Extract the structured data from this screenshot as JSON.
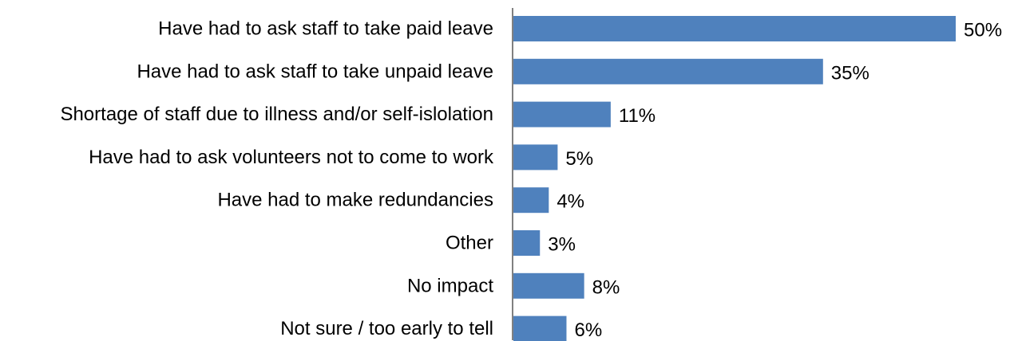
{
  "chart_data": {
    "type": "bar",
    "orientation": "horizontal",
    "categories": [
      "Have had to ask staff to take paid leave",
      "Have had to ask staff to take unpaid leave",
      "Shortage of staff due to illness and/or self-islolation",
      "Have had to ask volunteers not to come to work",
      "Have had to make redundancies",
      "Other",
      "No impact",
      "Not sure / too early to tell"
    ],
    "values": [
      50,
      35,
      11,
      5,
      4,
      3,
      8,
      6
    ],
    "value_labels": [
      "50%",
      "35%",
      "11%",
      "5%",
      "4%",
      "3%",
      "8%",
      "6%"
    ],
    "xlim": [
      0,
      50
    ],
    "grid": false,
    "legend": false,
    "bar_color": "#4f81bd"
  }
}
